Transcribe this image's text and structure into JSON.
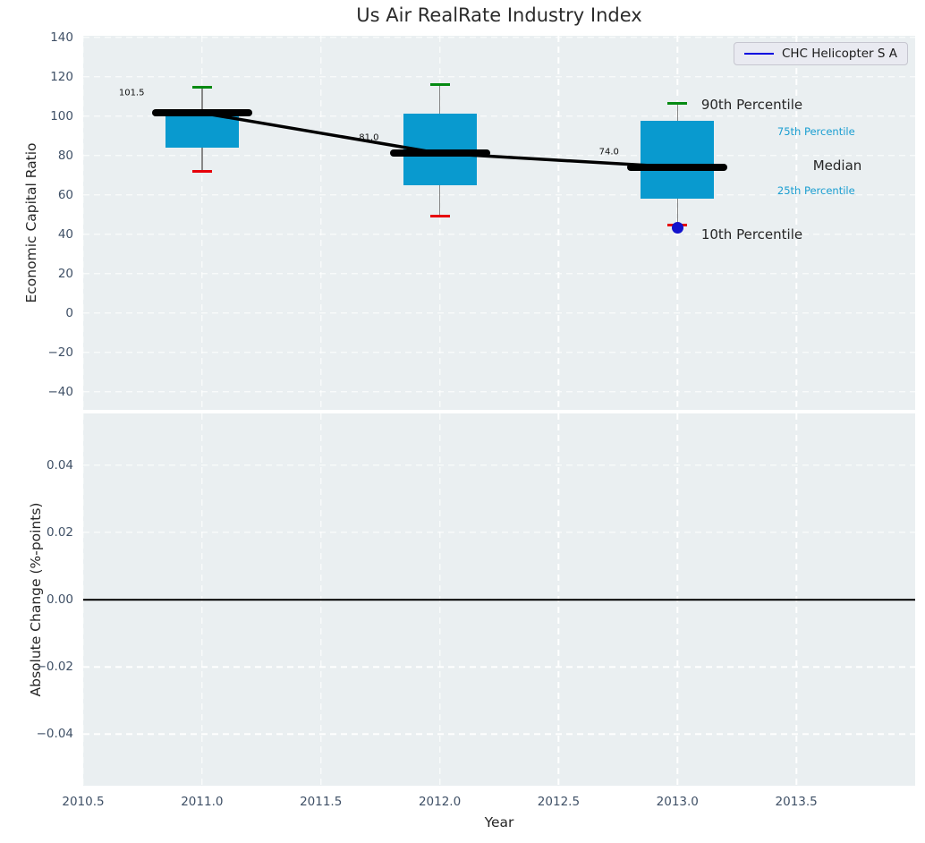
{
  "title": "Us Air RealRate Industry Index",
  "colors": {
    "axes-bg": "#eaeff1",
    "grid": "#ffffff",
    "tick-text": "#3f5066",
    "box-fill": "#099ACF",
    "cap-high": "#058a12",
    "cap-low": "#e6000a",
    "median-line": "#000000",
    "company": "#1212cc",
    "accent-text": "#1a9ed1",
    "legend-line": "#0000e0"
  },
  "chart_data": [
    {
      "type": "boxplot",
      "panel": "top",
      "ylabel": "Economic Capital Ratio",
      "xlim": [
        2010.5,
        2014.0
      ],
      "ylim": [
        -49.3,
        140.7
      ],
      "grid": "white dashed, on",
      "ytick_values": [
        140,
        120,
        100,
        80,
        60,
        40,
        20,
        0,
        -20,
        -40
      ],
      "ytick_labels": [
        "140",
        "120",
        "100",
        "80",
        "60",
        "40",
        "20",
        "0",
        "−20",
        "−40"
      ],
      "xtick_values": [
        2010.5,
        2011.0,
        2011.5,
        2012.0,
        2012.5,
        2013.0,
        2013.5
      ],
      "legend": {
        "position": "upper right",
        "entries": [
          {
            "label": "CHC Helicopter S A",
            "color": "#0000e0"
          }
        ]
      },
      "boxes": [
        {
          "x": 2011,
          "p90": 114.5,
          "p75": 101,
          "median": 101.5,
          "p25": 84,
          "p10": 72,
          "median_label": "101.5",
          "label_x": 2010.65,
          "label_y": 111.5
        },
        {
          "x": 2012,
          "p90": 116,
          "p75": 101,
          "median": 81.0,
          "p25": 65,
          "p10": 49,
          "median_label": "81.0",
          "label_x": 2011.66,
          "label_y": 89
        },
        {
          "x": 2013,
          "p90": 106.5,
          "p75": 97.5,
          "median": 74.0,
          "p25": 58,
          "p10": 44.5,
          "median_label": "74.0",
          "label_x": 2012.67,
          "label_y": 81.5
        }
      ],
      "median_trend": [
        [
          2011,
          101.5
        ],
        [
          2012,
          81.0
        ],
        [
          2013,
          74.0
        ]
      ],
      "company_series": {
        "name": "CHC Helicopter S A",
        "points": [
          [
            2013,
            43
          ]
        ]
      },
      "annotations": [
        {
          "text": "90th Percentile",
          "x": 2013.1,
          "y": 105.5,
          "size": "large",
          "color": "#262626"
        },
        {
          "text": "75th Percentile",
          "x": 2013.42,
          "y": 92,
          "size": "small",
          "color": "#1a9ed1"
        },
        {
          "text": "Median",
          "x": 2013.57,
          "y": 75,
          "size": "large",
          "color": "#262626"
        },
        {
          "text": "25th Percentile",
          "x": 2013.42,
          "y": 62,
          "size": "small",
          "color": "#1a9ed1"
        },
        {
          "text": "10th Percentile",
          "x": 2013.1,
          "y": 40,
          "size": "large",
          "color": "#262626"
        }
      ]
    },
    {
      "type": "line",
      "panel": "bottom",
      "ylabel": "Absolute Change (%-points)",
      "xlabel": "Year",
      "xlim": [
        2010.5,
        2014.0
      ],
      "ylim": [
        -0.0553,
        0.0553
      ],
      "grid": "white dashed, on",
      "ytick_values": [
        0.04,
        0.02,
        0,
        -0.02,
        -0.04
      ],
      "ytick_labels": [
        "0.04",
        "0.02",
        "0.00",
        "−0.02",
        "−0.04"
      ],
      "xtick_values": [
        2010.5,
        2011.0,
        2011.5,
        2012.0,
        2012.5,
        2013.0,
        2013.5
      ],
      "xtick_labels": [
        "2010.5",
        "2011.0",
        "2011.5",
        "2012.0",
        "2012.5",
        "2013.0",
        "2013.5"
      ],
      "baseline": 0,
      "series": []
    }
  ]
}
